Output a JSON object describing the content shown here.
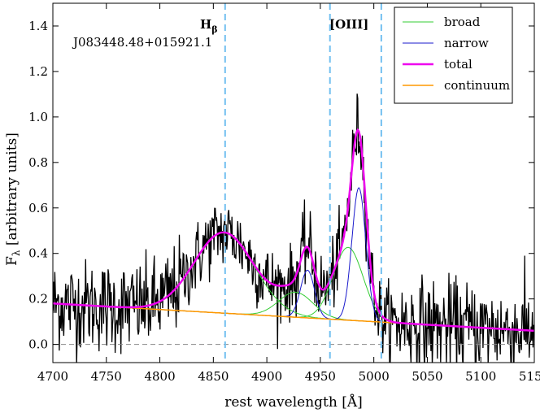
{
  "chart_data": {
    "type": "line",
    "title": "",
    "object_name": "J083448.48+015921.1",
    "xlabel": "rest wavelength [Å]",
    "ylabel_main": "F",
    "ylabel_sub": "λ",
    "ylabel_rest": " [arbitrary units]",
    "xlim": [
      4700,
      5150
    ],
    "ylim": [
      -0.08,
      1.5
    ],
    "x_ticks": [
      4700,
      4750,
      4800,
      4850,
      4900,
      4950,
      5000,
      5050,
      5100,
      5150
    ],
    "x_tick_labels": [
      "4700",
      "4750",
      "4800",
      "4850",
      "4900",
      "4950",
      "5000",
      "5050",
      "5100",
      "5150"
    ],
    "y_ticks": [
      0.0,
      0.2,
      0.4,
      0.6,
      0.8,
      1.0,
      1.2,
      1.4
    ],
    "y_tick_labels": [
      "0.0",
      "0.2",
      "0.4",
      "0.6",
      "0.8",
      "1.0",
      "1.2",
      "1.4"
    ],
    "zero_line": 0.0,
    "line_markers": [
      {
        "name": "H_beta",
        "label_main": "H",
        "label_sub": "β",
        "x": 4861
      },
      {
        "name": "OIII-4959",
        "x": 4959
      },
      {
        "name": "OIII-5007",
        "label": "[OIII]",
        "x": 5007
      }
    ],
    "legend": {
      "location": "top-right",
      "entries": [
        {
          "label": "broad",
          "color": "#33cc33"
        },
        {
          "label": "narrow",
          "color": "#1a1acc"
        },
        {
          "label": "total",
          "color": "#ee00ee"
        },
        {
          "label": "continuum",
          "color": "#ff9900"
        }
      ]
    },
    "series": [
      {
        "name": "continuum",
        "color": "#ff9900",
        "model": "linear",
        "x": [
          4700,
          5150
        ],
        "y": [
          0.18,
          0.06
        ]
      },
      {
        "name": "broad",
        "color": "#33cc33",
        "model": "gaussians_on_continuum",
        "components": [
          {
            "center": 4860,
            "amplitude": 0.355,
            "sigma": 28
          },
          {
            "center": 4927,
            "amplitude": 0.11,
            "sigma": 16
          },
          {
            "center": 4976,
            "amplitude": 0.32,
            "sigma": 14
          }
        ]
      },
      {
        "name": "narrow",
        "color": "#1a1acc",
        "model": "gaussians_on_continuum",
        "components": [
          {
            "center": 4938,
            "amplitude": 0.21,
            "sigma": 6.5
          },
          {
            "center": 4986,
            "amplitude": 0.585,
            "sigma": 6.5
          }
        ]
      },
      {
        "name": "total",
        "color": "#ee00ee",
        "model": "sum_of_components"
      },
      {
        "name": "data",
        "color": "#000000",
        "model": "noisy_spectrum",
        "noise_sigma": 0.08,
        "sample_step": 0.6
      }
    ]
  }
}
